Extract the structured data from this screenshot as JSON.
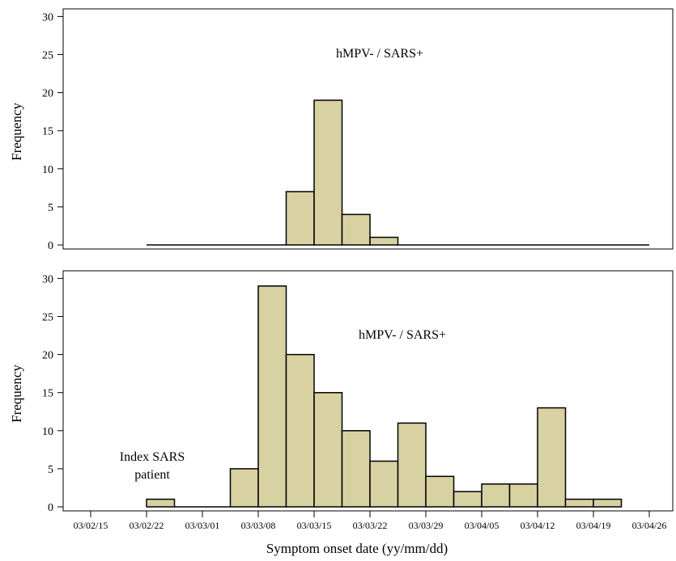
{
  "chart_data": [
    {
      "type": "bar",
      "panel": "top",
      "annotation": "hMPV- / SARS+",
      "ylabel": "Frequency",
      "ylim": [
        0,
        31
      ],
      "yticks": [
        0,
        5,
        10,
        15,
        20,
        25,
        30
      ],
      "bin_days": 3.5,
      "x_start": "03/02/22",
      "values": [
        0,
        0,
        0,
        0,
        0,
        7,
        19,
        4,
        1,
        0,
        0,
        0,
        0,
        0,
        0,
        0,
        0,
        0
      ]
    },
    {
      "type": "bar",
      "panel": "bottom",
      "annotation": "hMPV- / SARS+",
      "note_label": [
        "Index SARS",
        "patient"
      ],
      "ylabel": "Frequency",
      "xlabel": "Symptom  onset date (yy/mm/dd)",
      "ylim": [
        0,
        31
      ],
      "yticks": [
        0,
        5,
        10,
        15,
        20,
        25,
        30
      ],
      "bin_days": 3.5,
      "x_start": "03/02/22",
      "values": [
        1,
        0,
        0,
        5,
        29,
        20,
        15,
        10,
        6,
        11,
        4,
        2,
        3,
        3,
        13,
        1,
        1
      ],
      "xticks": [
        "03/02/15",
        "03/02/22",
        "03/03/01",
        "03/03/08",
        "03/03/15",
        "03/03/22",
        "03/03/29",
        "03/04/05",
        "03/04/12",
        "03/04/19",
        "03/04/26"
      ]
    }
  ]
}
